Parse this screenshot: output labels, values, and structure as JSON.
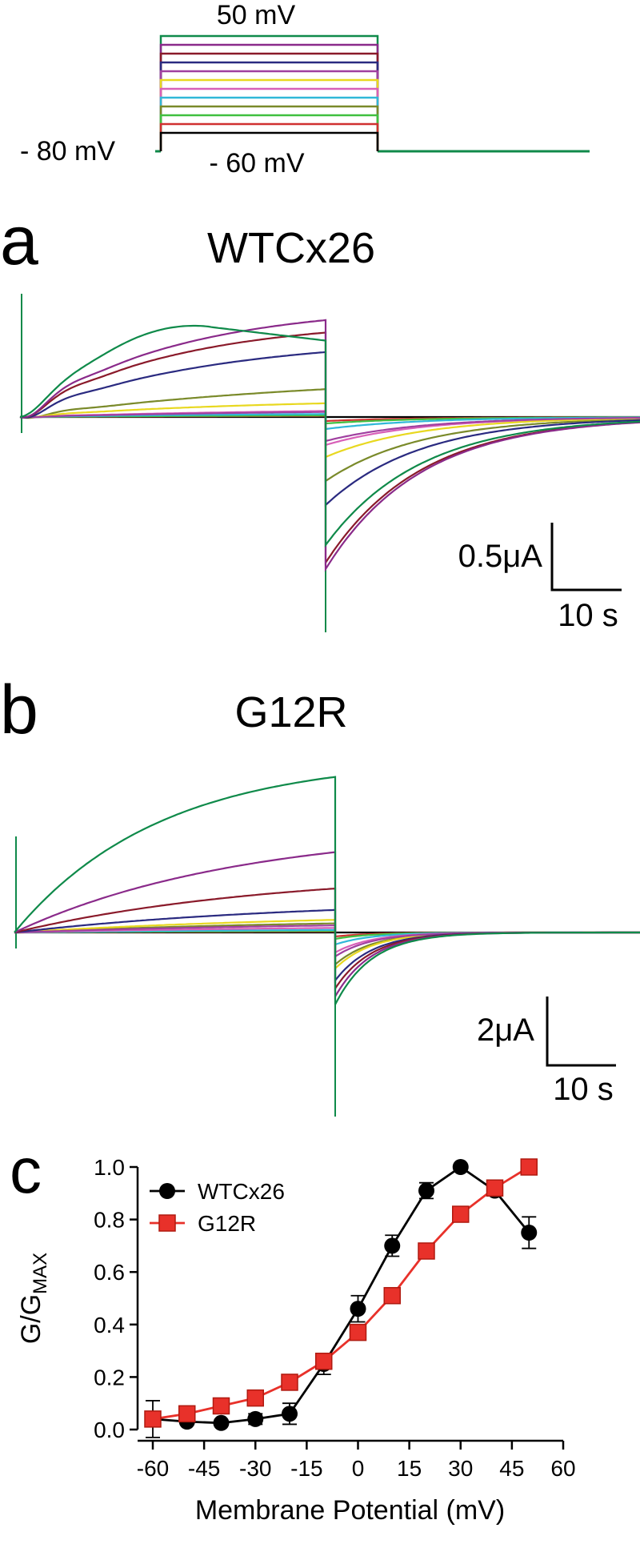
{
  "figure": {
    "protocol": {
      "top_label": "50 mV",
      "hold_label": "- 80 mV",
      "bottom_label": "- 60 mV"
    },
    "panel_a": {
      "letter": "a",
      "title": "WTCx26",
      "scale_current": "0.5μA",
      "scale_time": "10 s"
    },
    "panel_b": {
      "letter": "b",
      "title": "G12R",
      "scale_current": "2μA",
      "scale_time": "10 s"
    },
    "panel_c": {
      "letter": "c"
    }
  },
  "chart_data": {
    "type": "line",
    "xlabel": "Membrane Potential (mV)",
    "ylabel": "G/G",
    "ylabel_sub": "MAX",
    "x": [
      -60,
      -50,
      -40,
      -30,
      -20,
      -10,
      0,
      10,
      20,
      30,
      40,
      50
    ],
    "xlim": [
      -60,
      60
    ],
    "xticks": [
      -60,
      -45,
      -30,
      -15,
      0,
      15,
      30,
      45,
      60
    ],
    "ylim": [
      0,
      1
    ],
    "yticks": [
      {
        "value": 0,
        "label": "0.0"
      },
      0.2,
      0.4,
      0.6,
      0.8,
      {
        "value": 1,
        "label": "1.0"
      }
    ],
    "legend": "upper left",
    "series": [
      {
        "name": "WTCx26",
        "color": "#000000",
        "marker": "circle",
        "values": [
          0.04,
          0.03,
          0.025,
          0.04,
          0.06,
          0.25,
          0.46,
          0.7,
          0.91,
          1.0,
          0.91,
          0.75
        ],
        "errors": [
          0.02,
          0.01,
          0.01,
          0.02,
          0.04,
          0.04,
          0.05,
          0.04,
          0.03,
          0.01,
          0.02,
          0.06
        ]
      },
      {
        "name": "G12R",
        "color": "#e8312a",
        "marker": "square",
        "values": [
          0.04,
          0.06,
          0.09,
          0.12,
          0.18,
          0.26,
          0.37,
          0.51,
          0.68,
          0.82,
          0.92,
          1.0
        ],
        "errors": [
          0.07,
          0.02,
          0.01,
          0.01,
          0.01,
          0.02,
          0.01,
          0.01,
          0.01,
          0.01,
          0.01,
          0.0
        ]
      }
    ]
  }
}
